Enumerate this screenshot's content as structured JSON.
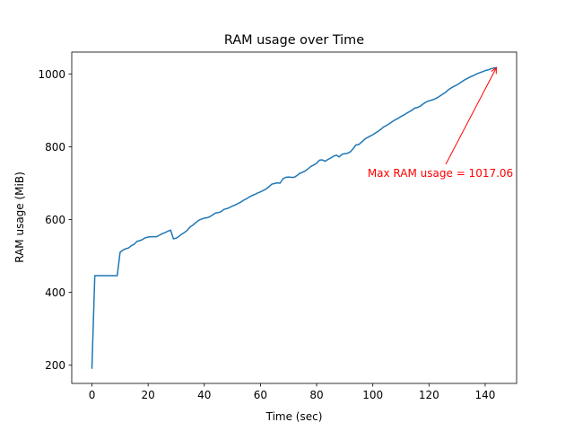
{
  "chart_data": {
    "type": "line",
    "title": "RAM usage over Time",
    "xlabel": "Time (sec)",
    "ylabel": "RAM usage (MiB)",
    "xlim": [
      -7.2,
      151.2
    ],
    "ylim": [
      150,
      1060
    ],
    "xticks": [
      0,
      20,
      40,
      60,
      80,
      100,
      120,
      140
    ],
    "yticks": [
      200,
      400,
      600,
      800,
      1000
    ],
    "grid": false,
    "series": [
      {
        "color": "#1f77b4",
        "x": [
          0,
          1,
          2,
          3,
          4,
          5,
          6,
          7,
          8,
          9,
          10,
          11,
          12,
          13,
          14,
          15,
          16,
          17,
          18,
          19,
          20,
          21,
          22,
          23,
          24,
          25,
          26,
          27,
          28,
          29,
          30,
          31,
          32,
          33,
          34,
          35,
          36,
          37,
          38,
          39,
          40,
          41,
          42,
          43,
          44,
          45,
          46,
          47,
          48,
          49,
          50,
          51,
          52,
          53,
          54,
          55,
          56,
          57,
          58,
          59,
          60,
          61,
          62,
          63,
          64,
          65,
          66,
          67,
          68,
          69,
          70,
          71,
          72,
          73,
          74,
          75,
          76,
          77,
          78,
          79,
          80,
          81,
          82,
          83,
          84,
          85,
          86,
          87,
          88,
          89,
          90,
          91,
          92,
          93,
          94,
          95,
          96,
          97,
          98,
          99,
          100,
          101,
          102,
          103,
          104,
          105,
          106,
          107,
          108,
          109,
          110,
          111,
          112,
          113,
          114,
          115,
          116,
          117,
          118,
          119,
          120,
          121,
          122,
          123,
          124,
          125,
          126,
          127,
          128,
          129,
          130,
          131,
          132,
          133,
          134,
          135,
          136,
          137,
          138,
          139,
          140,
          141,
          142,
          143,
          144
        ],
        "y": [
          192,
          446,
          446,
          446,
          446,
          446,
          446,
          446,
          446,
          446,
          510,
          516,
          520,
          522,
          528,
          532,
          540,
          542,
          545,
          550,
          552,
          553,
          553,
          553,
          557,
          561,
          564,
          568,
          571,
          547,
          549,
          554,
          560,
          565,
          571,
          580,
          585,
          592,
          598,
          601,
          604,
          605,
          608,
          613,
          618,
          619,
          622,
          628,
          630,
          633,
          637,
          640,
          644,
          648,
          653,
          657,
          662,
          666,
          669,
          673,
          676,
          680,
          684,
          690,
          697,
          699,
          701,
          700,
          712,
          716,
          717,
          716,
          716,
          721,
          727,
          730,
          734,
          740,
          746,
          750,
          755,
          763,
          764,
          760,
          765,
          769,
          774,
          777,
          772,
          779,
          781,
          782,
          786,
          795,
          805,
          806,
          813,
          820,
          825,
          829,
          833,
          838,
          843,
          849,
          855,
          859,
          864,
          869,
          874,
          878,
          883,
          887,
          892,
          896,
          901,
          906,
          908,
          912,
          918,
          923,
          926,
          928,
          931,
          935,
          940,
          945,
          950,
          957,
          962,
          966,
          970,
          975,
          980,
          985,
          989,
          993,
          996,
          1000,
          1003,
          1006,
          1009,
          1011,
          1014,
          1016,
          1017.06
        ]
      }
    ],
    "annotation": {
      "text": "Max RAM usage = 1017.06",
      "color": "#ff0000",
      "point": [
        144,
        1017.06
      ],
      "text_anchor": [
        126,
        752
      ]
    }
  }
}
